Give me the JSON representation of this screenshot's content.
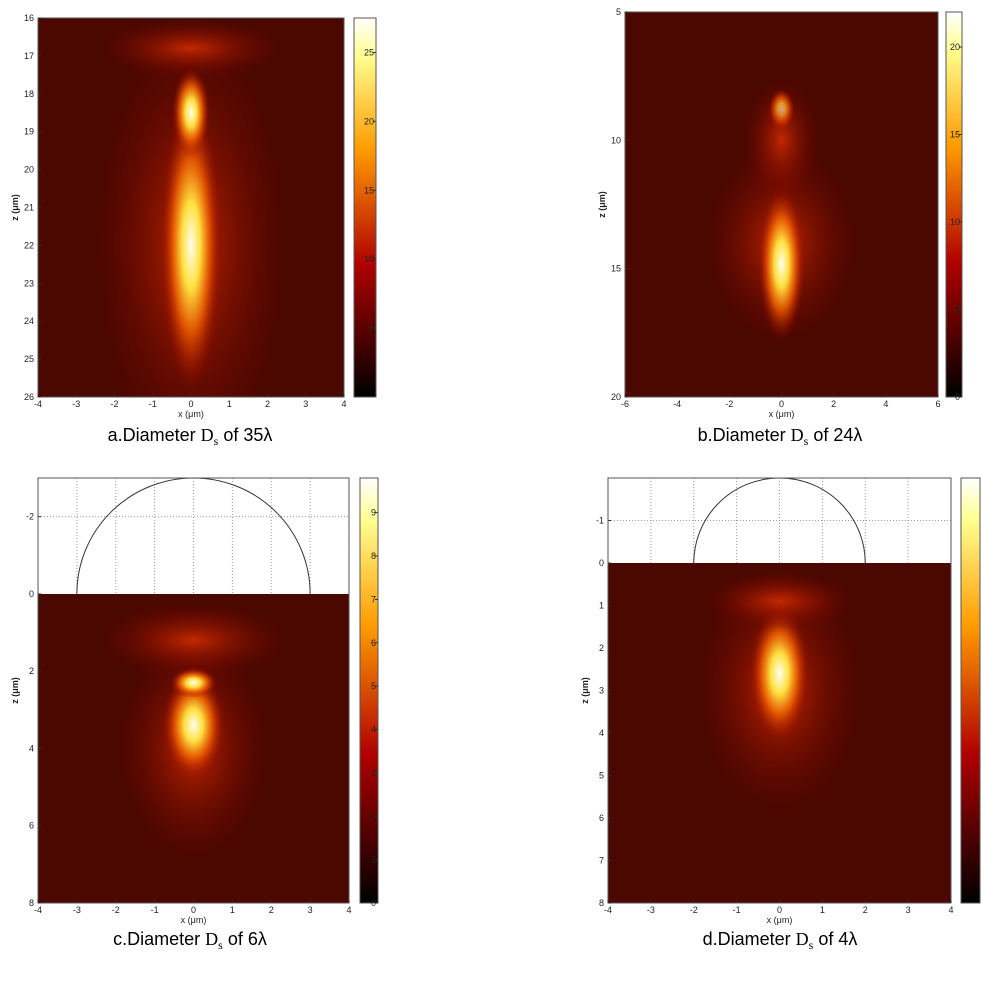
{
  "chart_data": [
    {
      "type": "heatmap",
      "xlabel": "x (μm)",
      "ylabel": "z (μm)",
      "xlim": [
        -4,
        4
      ],
      "xticks": [
        -4,
        -3,
        -2,
        -1,
        0,
        1,
        2,
        3,
        4
      ],
      "ylim": [
        16,
        26
      ],
      "yticks": [
        16,
        17,
        18,
        19,
        20,
        21,
        22,
        23,
        24,
        25,
        26
      ],
      "clim": [
        0,
        27.5
      ],
      "cticks": [
        5,
        10,
        15,
        20,
        25
      ],
      "colormap": "hot",
      "caption": [
        "a.Diameter ",
        "D",
        "s",
        " of 35λ"
      ]
    },
    {
      "type": "heatmap",
      "xlabel": "x (μm)",
      "ylabel": "z (μm)",
      "xlim": [
        -6,
        6
      ],
      "xticks": [
        -6,
        -4,
        -2,
        0,
        2,
        4,
        6
      ],
      "ylim": [
        5,
        20
      ],
      "yticks": [
        5,
        10,
        15,
        20
      ],
      "clim": [
        0,
        22
      ],
      "cticks": [
        0,
        5,
        10,
        15,
        20
      ],
      "colormap": "hot",
      "caption": [
        "b.Diameter ",
        "D",
        "s",
        " of 24λ"
      ]
    },
    {
      "type": "heatmap",
      "xlabel": "x (μm)",
      "ylabel": "z (μm)",
      "xlim": [
        -4,
        4
      ],
      "xticks": [
        -4,
        -3,
        -2,
        -1,
        0,
        1,
        2,
        3,
        4
      ],
      "ylim": [
        -3,
        8
      ],
      "yticks": [
        -2,
        0,
        2,
        4,
        6,
        8
      ],
      "clim": [
        0,
        9.8
      ],
      "cticks": [
        0,
        1,
        2,
        3,
        4,
        5,
        6,
        7,
        8,
        9
      ],
      "colormap": "hot",
      "caption": [
        "c.Diameter ",
        "D",
        "s",
        " of 6λ"
      ]
    },
    {
      "type": "heatmap",
      "xlabel": "x (μm)",
      "ylabel": "z (μm)",
      "xlim": [
        -4,
        4
      ],
      "xticks": [
        -4,
        -3,
        -2,
        -1,
        0,
        1,
        2,
        3,
        4
      ],
      "ylim": [
        -2,
        8
      ],
      "yticks": [
        -1,
        0,
        1,
        2,
        3,
        4,
        5,
        6,
        7,
        8
      ],
      "clim": [
        0,
        10
      ],
      "colormap": "hot",
      "caption": [
        "d.Diameter ",
        "D",
        "s",
        " of 4λ"
      ]
    }
  ]
}
